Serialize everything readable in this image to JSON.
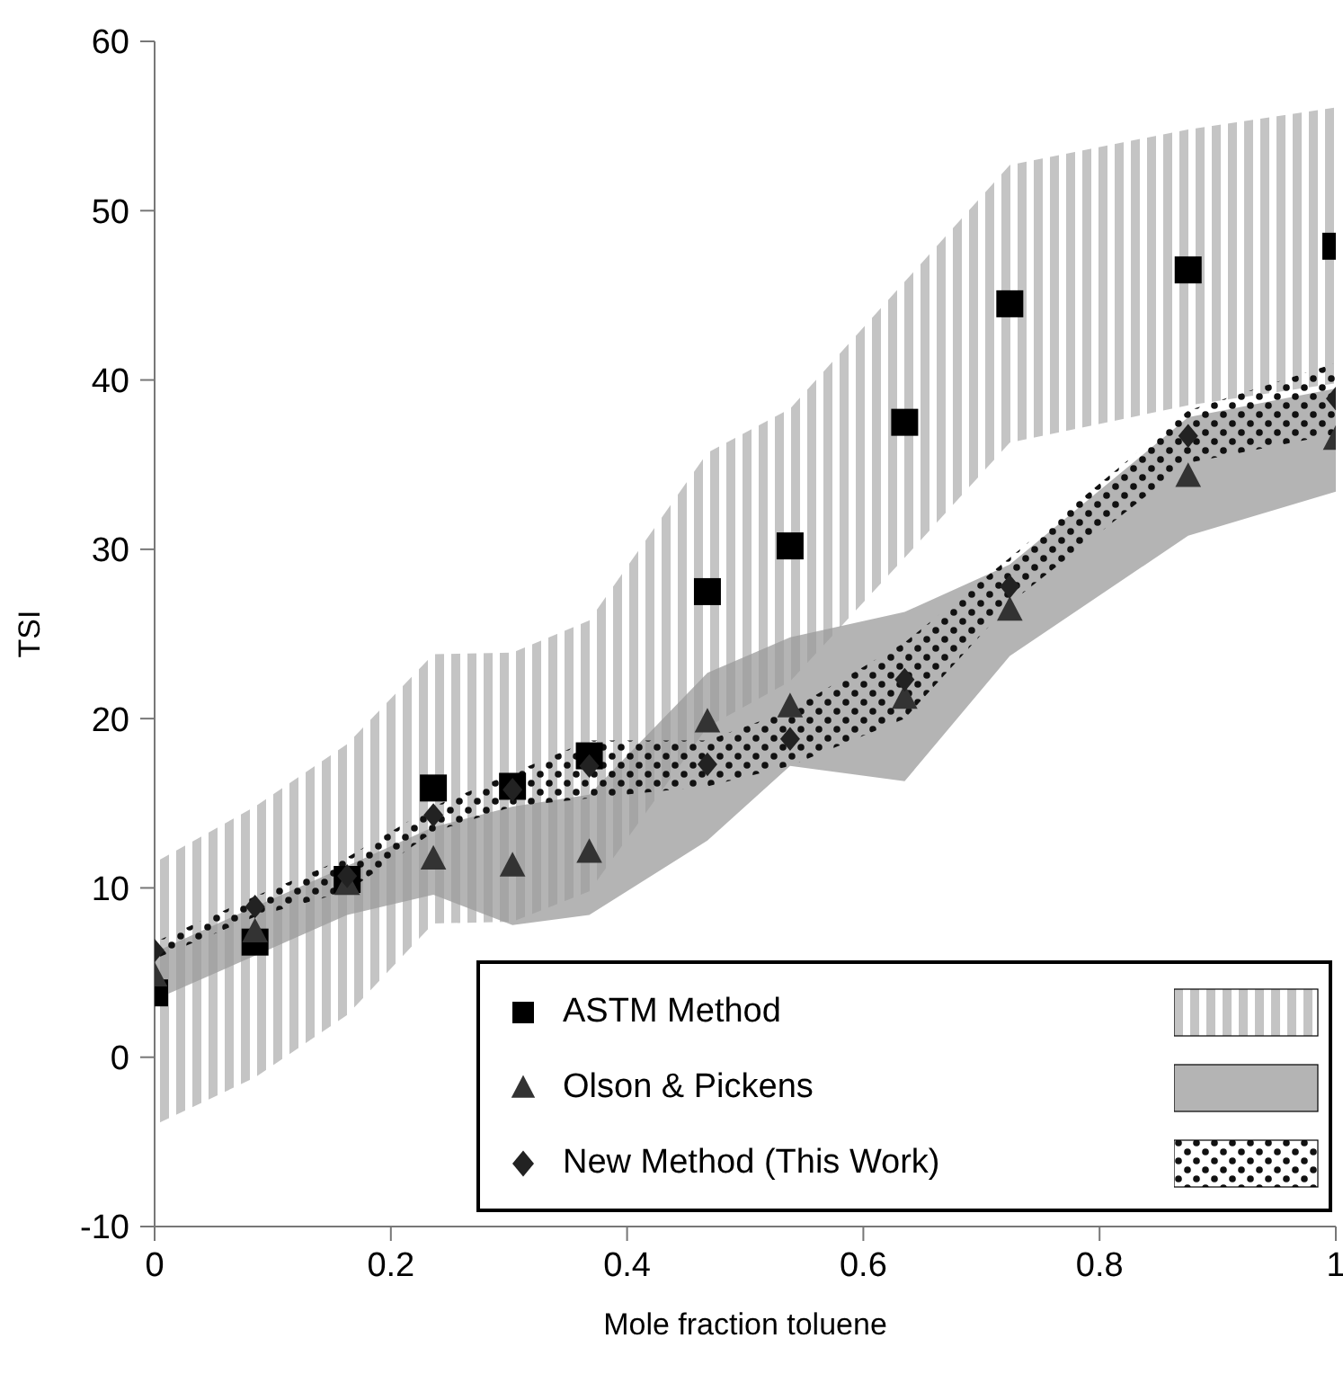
{
  "chart_data": {
    "type": "scatter",
    "xlabel": "Mole fraction toluene",
    "ylabel": "TSI",
    "x": [
      0,
      0.085,
      0.163,
      0.236,
      0.303,
      0.368,
      0.468,
      0.538,
      0.635,
      0.724,
      0.875,
      1
    ],
    "xlim": [
      0,
      1
    ],
    "xticks": [
      0,
      0.2,
      0.4,
      0.6,
      0.8,
      1
    ],
    "ylim": [
      -10,
      60
    ],
    "yticks": [
      -10,
      0,
      10,
      20,
      30,
      40,
      50,
      60
    ],
    "legend": "bottom right",
    "series": [
      {
        "name": "ASTM Method",
        "color": "#000000",
        "marker": "square",
        "values": [
          3.8,
          6.8,
          10.5,
          15.9,
          16.0,
          17.8,
          27.5,
          30.2,
          37.5,
          44.5,
          46.5,
          47.9
        ],
        "lower": [
          -4,
          -1.2,
          2.5,
          7.9,
          8.0,
          9.8,
          19.5,
          22.2,
          29.5,
          36.3,
          38.5,
          39.8
        ],
        "upper": [
          11.5,
          14.8,
          18.5,
          23.8,
          23.9,
          25.8,
          35.7,
          38.3,
          45.8,
          52.7,
          54.8,
          56.1
        ]
      },
      {
        "name": "Olson & Pickens",
        "color": "#333333",
        "marker": "triangle",
        "values": [
          4.8,
          7.4,
          10.2,
          11.7,
          11.3,
          12.1,
          19.8,
          20.7,
          21.2,
          26.4,
          34.3,
          36.5
        ],
        "lower": [
          3.4,
          6.0,
          8.4,
          9.6,
          7.8,
          8.4,
          12.8,
          17.2,
          16.3,
          23.7,
          30.8,
          33.4
        ],
        "upper": [
          6.2,
          8.9,
          11.3,
          13.6,
          14.8,
          15.5,
          22.7,
          24.8,
          26.3,
          29.1,
          37.8,
          39.5
        ]
      },
      {
        "name": "New Method (This Work)",
        "color": "#222222",
        "marker": "diamond",
        "values": [
          6.3,
          8.9,
          10.7,
          14.3,
          15.8,
          17.2,
          17.3,
          18.8,
          22.3,
          27.8,
          36.7,
          38.9
        ],
        "lower": [
          5.8,
          8.3,
          9.8,
          13.3,
          14.8,
          15.3,
          16.0,
          17.2,
          20.0,
          26.8,
          35.1,
          36.8
        ],
        "upper": [
          6.8,
          9.5,
          11.8,
          14.8,
          16.8,
          18.7,
          18.7,
          20.5,
          24.5,
          29.5,
          38.2,
          41.0
        ]
      }
    ]
  }
}
